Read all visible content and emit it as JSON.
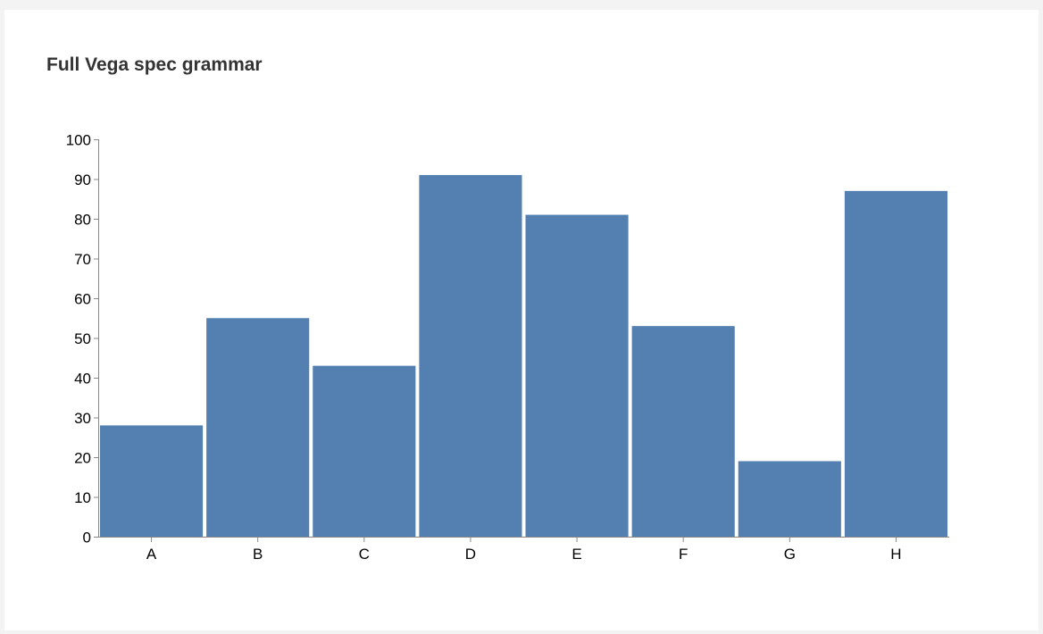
{
  "chart_data": {
    "type": "bar",
    "title": "Full Vega spec grammar",
    "categories": [
      "A",
      "B",
      "C",
      "D",
      "E",
      "F",
      "G",
      "H"
    ],
    "values": [
      28,
      55,
      43,
      91,
      81,
      53,
      19,
      87
    ],
    "xlabel": "",
    "ylabel": "",
    "ylim": [
      0,
      100
    ],
    "yticks": [
      "0",
      "10",
      "20",
      "30",
      "40",
      "50",
      "60",
      "70",
      "80",
      "90",
      "100"
    ],
    "grid": false,
    "bar_color": "#5480b1",
    "axis_color": "#888888"
  }
}
